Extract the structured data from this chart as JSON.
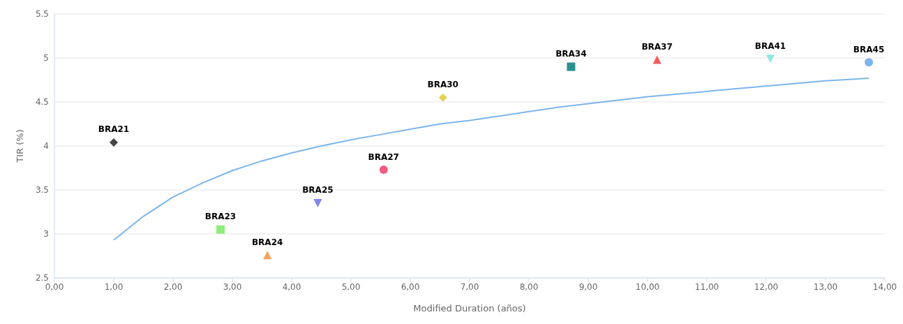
{
  "chart_data": {
    "type": "scatter",
    "xlabel": "Modified Duration (años)",
    "ylabel": "TIR (%)",
    "xlim": [
      0,
      14
    ],
    "xticks": [
      {
        "value": 0,
        "label": "0,00"
      },
      {
        "value": 1,
        "label": "1,00"
      },
      {
        "value": 2,
        "label": "2,00"
      },
      {
        "value": 3,
        "label": "3,00"
      },
      {
        "value": 4,
        "label": "4,00"
      },
      {
        "value": 5,
        "label": "5,00"
      },
      {
        "value": 6,
        "label": "6,00"
      },
      {
        "value": 7,
        "label": "7,00"
      },
      {
        "value": 8,
        "label": "8,00"
      },
      {
        "value": 9,
        "label": "9,00"
      },
      {
        "value": 10,
        "label": "10,00"
      },
      {
        "value": 11,
        "label": "11,00"
      },
      {
        "value": 12,
        "label": "12,00"
      },
      {
        "value": 13,
        "label": "13,00"
      },
      {
        "value": 14,
        "label": "14,00"
      }
    ],
    "ylim": [
      2.5,
      5.5
    ],
    "yticks": [
      2.5,
      3,
      3.5,
      4,
      4.5,
      5,
      5.5
    ],
    "grid": "y",
    "legend": false,
    "series": [
      {
        "type": "line",
        "color": "#7cb5ec",
        "marker": "none",
        "line_style": "solid",
        "x": [
          1,
          1.5,
          2,
          2.5,
          3,
          3.5,
          4,
          4.5,
          5,
          5.5,
          6,
          6.5,
          7,
          7.5,
          8,
          8.5,
          9,
          9.5,
          10,
          10.5,
          11,
          11.5,
          12,
          12.5,
          13,
          13.5,
          13.73
        ],
        "values": [
          2.93,
          3.2,
          3.42,
          3.58,
          3.72,
          3.83,
          3.92,
          4.0,
          4.07,
          4.13,
          4.19,
          4.25,
          4.29,
          4.34,
          4.39,
          4.44,
          4.48,
          4.52,
          4.56,
          4.59,
          4.62,
          4.65,
          4.68,
          4.71,
          4.74,
          4.76,
          4.77
        ]
      },
      {
        "name": "BRA21",
        "color": "#434348",
        "marker": "diamond",
        "x": [
          1.0
        ],
        "values": [
          4.04
        ]
      },
      {
        "name": "BRA23",
        "color": "#90ed7d",
        "marker": "square",
        "x": [
          2.8
        ],
        "values": [
          3.05
        ]
      },
      {
        "name": "BRA24",
        "color": "#f7a35c",
        "marker": "triangle",
        "x": [
          3.59
        ],
        "values": [
          2.76
        ]
      },
      {
        "name": "BRA25",
        "color": "#8085e9",
        "marker": "triangle-down",
        "x": [
          4.44
        ],
        "values": [
          3.35
        ]
      },
      {
        "name": "BRA27",
        "color": "#f15c80",
        "marker": "circle",
        "x": [
          5.55
        ],
        "values": [
          3.73
        ]
      },
      {
        "name": "BRA30",
        "color": "#e4d354",
        "marker": "diamond",
        "x": [
          6.55
        ],
        "values": [
          4.55
        ]
      },
      {
        "name": "BRA34",
        "color": "#2b908f",
        "marker": "square",
        "x": [
          8.71
        ],
        "values": [
          4.9
        ]
      },
      {
        "name": "BRA37",
        "color": "#f45b5b",
        "marker": "triangle",
        "x": [
          10.16
        ],
        "values": [
          4.98
        ]
      },
      {
        "name": "BRA41",
        "color": "#91e8e1",
        "marker": "triangle-down",
        "x": [
          12.07
        ],
        "values": [
          4.99
        ]
      },
      {
        "name": "BRA45",
        "color": "#7cb5ec",
        "marker": "circle",
        "x": [
          13.73
        ],
        "values": [
          4.95
        ]
      }
    ]
  }
}
